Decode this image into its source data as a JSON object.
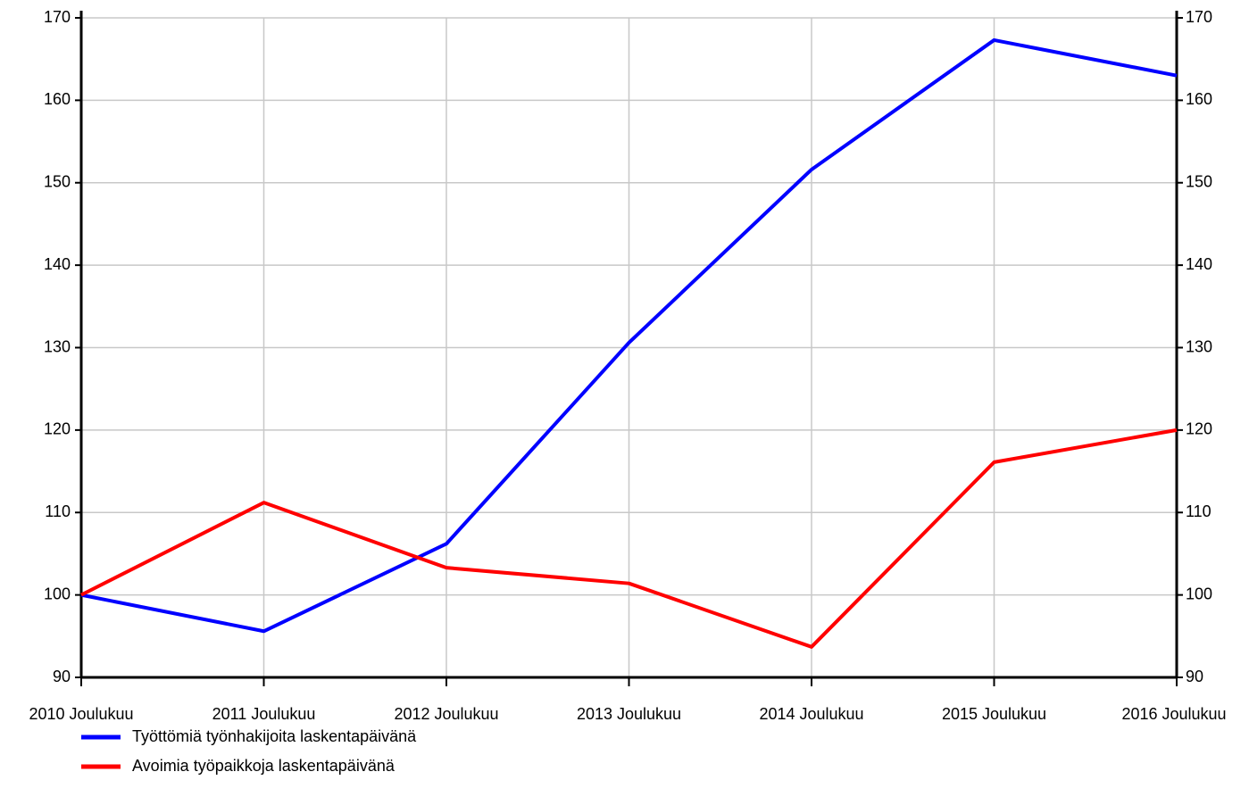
{
  "chart_data": {
    "type": "line",
    "categories": [
      "2010 Joulukuu",
      "2011 Joulukuu",
      "2012 Joulukuu",
      "2013 Joulukuu",
      "2014 Joulukuu",
      "2015 Joulukuu",
      "2016 Joulukuu"
    ],
    "series": [
      {
        "name": "Työttömiä työnhakijoita laskentapäivänä",
        "color": "#0000ff",
        "values": [
          100,
          95.6,
          106.2,
          130.6,
          151.6,
          167.3,
          163
        ]
      },
      {
        "name": "Avoimia työpaikkoja laskentapäivänä",
        "color": "#ff0000",
        "values": [
          100,
          111.2,
          103.3,
          101.4,
          93.7,
          116.1,
          120
        ]
      }
    ],
    "ylim": [
      90,
      170
    ],
    "yticks": [
      90,
      100,
      110,
      120,
      130,
      140,
      150,
      160,
      170
    ],
    "y2lim": [
      90,
      170
    ],
    "y2ticks": [
      90,
      100,
      110,
      120,
      130,
      140,
      150,
      160,
      170
    ],
    "grid": true,
    "legend": "bottom-left"
  }
}
